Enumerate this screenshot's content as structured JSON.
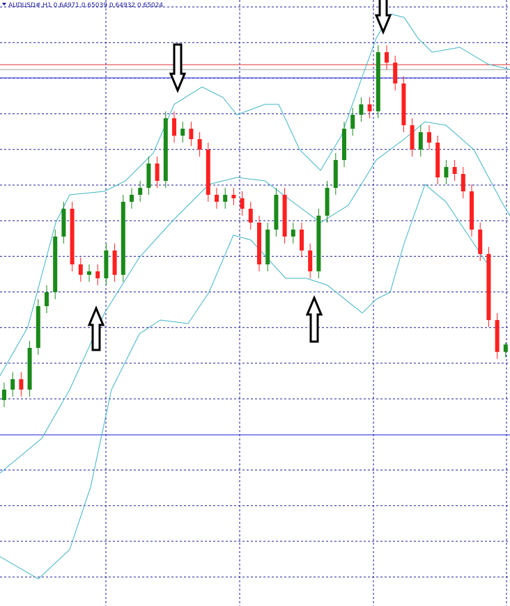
{
  "chart_data": {
    "type": "candlestick",
    "title": "AUDUSD#,H1 0.64971 0.65039 0.64932 0.65024",
    "ylim": [
      0.63145,
      0.675
    ],
    "up_color": "#1a8a1a",
    "down_color": "#ff2020",
    "open": [
      0.64625,
      0.647,
      0.64775,
      0.647,
      0.65,
      0.653,
      0.654,
      0.658,
      0.66,
      0.656,
      0.65525,
      0.6555,
      0.655,
      0.657,
      0.65525,
      0.6605,
      0.661,
      0.6615,
      0.66325,
      0.662,
      0.6665,
      0.66525,
      0.66575,
      0.665,
      0.66425,
      0.661,
      0.6605,
      0.661,
      0.66075,
      0.66,
      0.659,
      0.656,
      0.6585,
      0.661,
      0.658,
      0.6585,
      0.657,
      0.6555,
      0.6595,
      0.6615,
      0.6635,
      0.66575,
      0.66675,
      0.6675,
      0.667,
      0.67125,
      0.6705,
      0.669,
      0.666,
      0.66425,
      0.6655,
      0.66475,
      0.66225,
      0.663,
      0.6625,
      0.66125,
      0.6585,
      0.65675,
      0.652,
      0.64971
    ],
    "high": [
      0.6475,
      0.64825,
      0.64825,
      0.6505,
      0.6535,
      0.6545,
      0.6585,
      0.6605,
      0.6605,
      0.6565,
      0.656,
      0.656,
      0.6575,
      0.6575,
      0.661,
      0.6615,
      0.662,
      0.66375,
      0.66375,
      0.667,
      0.667,
      0.66625,
      0.66625,
      0.6655,
      0.66475,
      0.6615,
      0.6615,
      0.6615,
      0.66125,
      0.6605,
      0.6595,
      0.659,
      0.6615,
      0.6615,
      0.659,
      0.659,
      0.6575,
      0.66,
      0.662,
      0.664,
      0.66625,
      0.66725,
      0.668,
      0.668,
      0.67175,
      0.67175,
      0.671,
      0.6695,
      0.6665,
      0.666,
      0.666,
      0.66525,
      0.6635,
      0.6635,
      0.663,
      0.66175,
      0.659,
      0.65725,
      0.6525,
      0.65039
    ],
    "low": [
      0.64575,
      0.6465,
      0.6465,
      0.6465,
      0.6495,
      0.6525,
      0.6535,
      0.6575,
      0.6555,
      0.65475,
      0.65475,
      0.6545,
      0.6545,
      0.65475,
      0.65475,
      0.66,
      0.6605,
      0.661,
      0.6615,
      0.6615,
      0.66475,
      0.66475,
      0.6645,
      0.66375,
      0.6605,
      0.66,
      0.66,
      0.66025,
      0.6595,
      0.6585,
      0.6555,
      0.6555,
      0.658,
      0.6575,
      0.6575,
      0.6565,
      0.655,
      0.655,
      0.659,
      0.661,
      0.663,
      0.66525,
      0.66625,
      0.6665,
      0.6665,
      0.67,
      0.6685,
      0.6655,
      0.66375,
      0.66375,
      0.66425,
      0.66175,
      0.66175,
      0.662,
      0.66075,
      0.658,
      0.65625,
      0.6515,
      0.64921,
      0.64932
    ],
    "close": [
      0.647,
      0.64775,
      0.647,
      0.65,
      0.653,
      0.654,
      0.658,
      0.66,
      0.656,
      0.65525,
      0.6555,
      0.655,
      0.657,
      0.65525,
      0.6605,
      0.661,
      0.6615,
      0.66325,
      0.662,
      0.6665,
      0.66525,
      0.66575,
      0.665,
      0.66425,
      0.661,
      0.6605,
      0.661,
      0.66075,
      0.66,
      0.659,
      0.656,
      0.6585,
      0.661,
      0.658,
      0.6585,
      0.657,
      0.6555,
      0.6595,
      0.6615,
      0.6635,
      0.66575,
      0.66675,
      0.6675,
      0.667,
      0.67125,
      0.6705,
      0.669,
      0.666,
      0.66425,
      0.6655,
      0.66475,
      0.66225,
      0.663,
      0.6625,
      0.66125,
      0.6585,
      0.65675,
      0.652,
      0.64971,
      0.65024
    ]
  }
}
